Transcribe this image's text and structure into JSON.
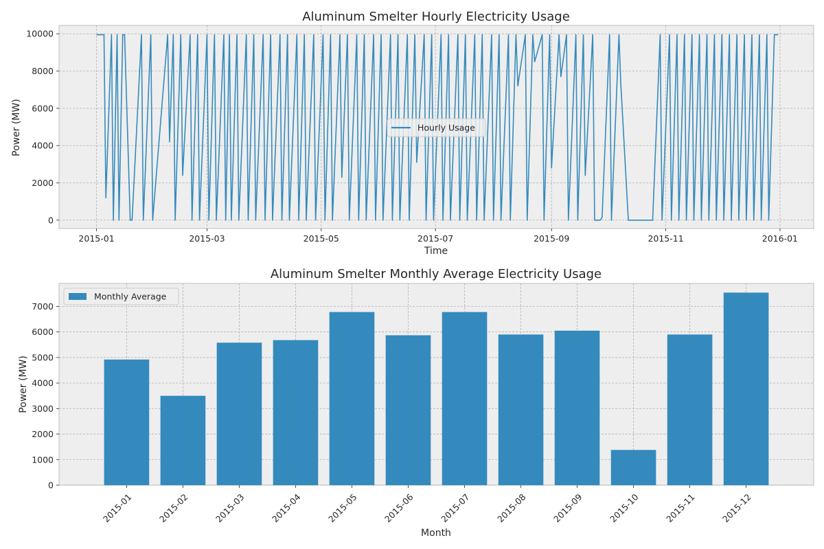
{
  "chart_data": [
    {
      "type": "line",
      "title": "Aluminum Smelter Hourly Electricity Usage",
      "xlabel": "Time",
      "ylabel": "Power (MW)",
      "xlim": [
        "2014-12-12",
        "2016-01-19"
      ],
      "ylim": [
        -450,
        10450
      ],
      "x_ticks": [
        "2015-01",
        "2015-03",
        "2015-05",
        "2015-07",
        "2015-09",
        "2015-11",
        "2016-01"
      ],
      "y_ticks": [
        0,
        2000,
        4000,
        6000,
        8000,
        10000
      ],
      "legend": "center",
      "grid": true,
      "color": "#348abd",
      "series": [
        {
          "name": "Hourly Usage",
          "x": [
            "2015-01-01",
            "2015-01-05",
            "2015-01-06",
            "2015-01-09",
            "2015-01-10",
            "2015-01-12",
            "2015-01-13",
            "2015-01-15",
            "2015-01-16",
            "2015-01-19",
            "2015-01-20",
            "2015-01-25",
            "2015-01-26",
            "2015-01-30",
            "2015-01-31",
            "2015-02-08",
            "2015-02-09",
            "2015-02-11",
            "2015-02-12",
            "2015-02-15",
            "2015-02-16",
            "2015-02-20",
            "2015-02-21",
            "2015-02-24",
            "2015-02-25",
            "2015-03-01",
            "2015-03-02",
            "2015-03-05",
            "2015-03-06",
            "2015-03-10",
            "2015-03-11",
            "2015-03-13",
            "2015-03-14",
            "2015-03-17",
            "2015-03-18",
            "2015-03-22",
            "2015-03-23",
            "2015-03-26",
            "2015-03-27",
            "2015-03-31",
            "2015-04-01",
            "2015-04-04",
            "2015-04-05",
            "2015-04-09",
            "2015-04-10",
            "2015-04-13",
            "2015-04-14",
            "2015-04-18",
            "2015-04-19",
            "2015-04-22",
            "2015-04-23",
            "2015-04-27",
            "2015-04-28",
            "2015-05-02",
            "2015-05-03",
            "2015-05-06",
            "2015-05-07",
            "2015-05-11",
            "2015-05-12",
            "2015-05-15",
            "2015-05-16",
            "2015-05-20",
            "2015-05-21",
            "2015-05-24",
            "2015-05-25",
            "2015-05-29",
            "2015-05-30",
            "2015-06-02",
            "2015-06-03",
            "2015-06-07",
            "2015-06-08",
            "2015-06-11",
            "2015-06-12",
            "2015-06-16",
            "2015-06-17",
            "2015-06-20",
            "2015-06-21",
            "2015-06-25",
            "2015-06-26",
            "2015-06-29",
            "2015-06-30",
            "2015-07-04",
            "2015-07-05",
            "2015-07-08",
            "2015-07-09",
            "2015-07-13",
            "2015-07-14",
            "2015-07-17",
            "2015-07-18",
            "2015-07-22",
            "2015-07-23",
            "2015-07-26",
            "2015-07-27",
            "2015-07-31",
            "2015-08-01",
            "2015-08-04",
            "2015-08-05",
            "2015-08-09",
            "2015-08-10",
            "2015-08-13",
            "2015-08-14",
            "2015-08-18",
            "2015-08-19",
            "2015-08-22",
            "2015-08-23",
            "2015-08-27",
            "2015-08-28",
            "2015-08-31",
            "2015-09-01",
            "2015-09-05",
            "2015-09-06",
            "2015-09-09",
            "2015-09-10",
            "2015-09-14",
            "2015-09-15",
            "2015-09-18",
            "2015-09-19",
            "2015-09-23",
            "2015-09-24",
            "2015-09-27",
            "2015-09-28",
            "2015-10-02",
            "2015-10-03",
            "2015-10-07",
            "2015-10-08",
            "2015-10-12",
            "2015-10-13",
            "2015-10-18",
            "2015-10-19",
            "2015-10-24",
            "2015-10-25",
            "2015-10-29",
            "2015-10-30",
            "2015-11-03",
            "2015-11-04",
            "2015-11-07",
            "2015-11-08",
            "2015-11-11",
            "2015-11-12",
            "2015-11-15",
            "2015-11-16",
            "2015-11-19",
            "2015-11-20",
            "2015-11-23",
            "2015-11-24",
            "2015-11-27",
            "2015-11-28",
            "2015-12-01",
            "2015-12-02",
            "2015-12-05",
            "2015-12-06",
            "2015-12-09",
            "2015-12-10",
            "2015-12-13",
            "2015-12-14",
            "2015-12-17",
            "2015-12-18",
            "2015-12-21",
            "2015-12-22",
            "2015-12-25",
            "2015-12-26",
            "2015-12-29",
            "2015-12-31"
          ],
          "values": [
            9950,
            9950,
            1200,
            9950,
            0,
            9950,
            0,
            9950,
            9950,
            0,
            0,
            9950,
            0,
            9950,
            0,
            9950,
            4200,
            9950,
            0,
            9950,
            2400,
            9950,
            0,
            9950,
            0,
            9950,
            0,
            9950,
            0,
            9950,
            0,
            9950,
            0,
            9950,
            0,
            9950,
            0,
            9950,
            0,
            9950,
            0,
            9950,
            0,
            9950,
            0,
            9950,
            0,
            9950,
            0,
            9950,
            0,
            9950,
            0,
            9950,
            0,
            9950,
            0,
            9950,
            2300,
            9950,
            0,
            9950,
            0,
            9950,
            0,
            9950,
            0,
            9950,
            0,
            9950,
            0,
            9950,
            0,
            9950,
            0,
            9950,
            3100,
            9950,
            0,
            9950,
            0,
            9950,
            0,
            9950,
            0,
            9950,
            0,
            9950,
            0,
            9950,
            0,
            9950,
            0,
            9950,
            0,
            9950,
            0,
            9950,
            0,
            9950,
            7200,
            9950,
            0,
            9950,
            8500,
            9950,
            0,
            9950,
            2800,
            9950,
            7700,
            9950,
            0,
            9950,
            0,
            9950,
            2400,
            9950,
            0,
            0,
            150,
            9950,
            0,
            9950,
            7300,
            0,
            0,
            0,
            0,
            0,
            0,
            9950,
            0,
            9950,
            0,
            9950,
            0,
            9950,
            0,
            9950,
            0,
            9950,
            0,
            9950,
            0,
            9950,
            0,
            9950,
            0,
            9950,
            0,
            9950,
            0,
            9950,
            0,
            9950,
            0,
            9950,
            0,
            9950,
            0,
            9950,
            9950
          ]
        }
      ]
    },
    {
      "type": "bar",
      "title": "Aluminum Smelter Monthly Average Electricity Usage",
      "xlabel": "Month",
      "ylabel": "Power (MW)",
      "ylim": [
        0,
        7900
      ],
      "y_ticks": [
        0,
        1000,
        2000,
        3000,
        4000,
        5000,
        6000,
        7000
      ],
      "legend": "top-left",
      "grid": true,
      "color": "#348abd",
      "categories": [
        "2015-01",
        "2015-02",
        "2015-03",
        "2015-04",
        "2015-05",
        "2015-06",
        "2015-07",
        "2015-08",
        "2015-09",
        "2015-10",
        "2015-11",
        "2015-12"
      ],
      "series": [
        {
          "name": "Monthly Average",
          "values": [
            4920,
            3500,
            5580,
            5680,
            6780,
            5870,
            6780,
            5900,
            6050,
            1380,
            5900,
            7540
          ]
        }
      ]
    }
  ]
}
